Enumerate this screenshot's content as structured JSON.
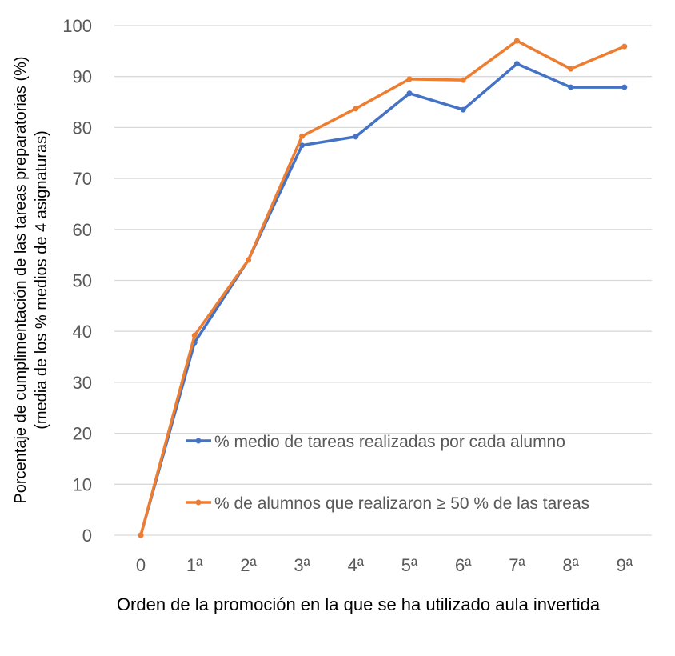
{
  "chart_data": {
    "type": "line",
    "title": "",
    "xlabel": "Orden de la promoción en la que se ha utilizado aula invertida",
    "ylabel": [
      "Porcentaje de cumplimentación de las tareas preparatorias (%)",
      "(media de los % medios de 4 asignaturas)"
    ],
    "categories": [
      "0",
      "1ª",
      "2ª",
      "3ª",
      "4ª",
      "5ª",
      "6ª",
      "7ª",
      "8ª",
      "9ª"
    ],
    "ylim": [
      0,
      100
    ],
    "yticks": [
      "0",
      "10",
      "20",
      "30",
      "40",
      "50",
      "60",
      "70",
      "80",
      "90",
      "100"
    ],
    "grid": true,
    "legend_position": "bottom-right inside",
    "series": [
      {
        "name": "% medio de tareas realizadas por cada alumno",
        "color": "#4472C4",
        "values": [
          0,
          37.8,
          54,
          76.5,
          78.2,
          86.7,
          83.5,
          92.5,
          87.9,
          87.9
        ]
      },
      {
        "name": "% de alumnos que realizaron ≥ 50 % de las tareas",
        "color": "#ED7D31",
        "values": [
          0,
          39.2,
          54,
          78.3,
          83.7,
          89.5,
          89.3,
          97.0,
          91.5,
          95.9
        ]
      }
    ]
  }
}
